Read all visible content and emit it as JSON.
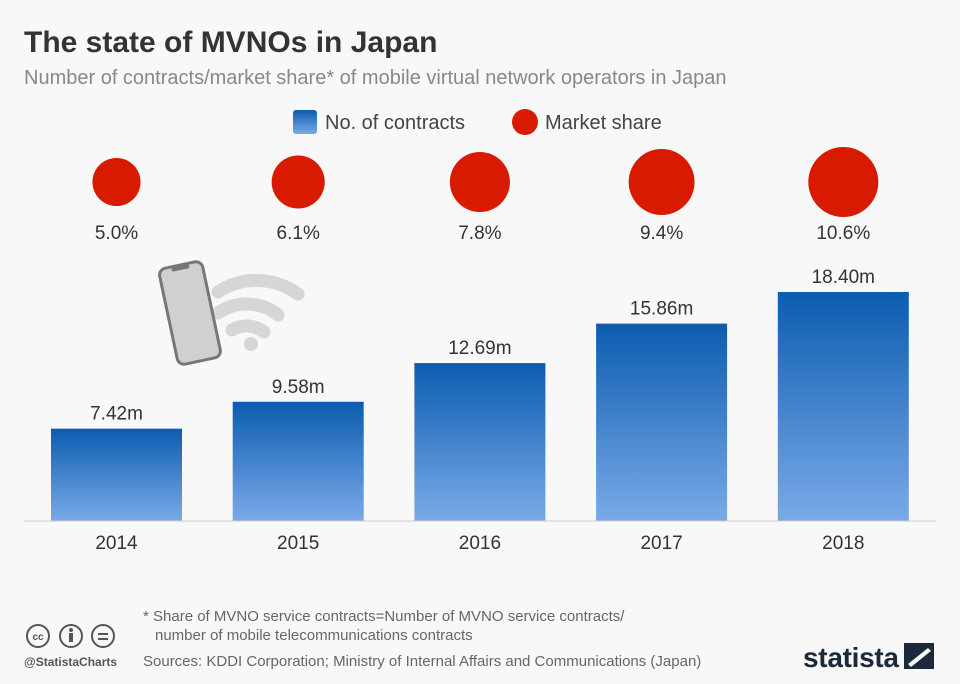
{
  "chart_data": {
    "type": "bar",
    "title": "The state of MVNOs in Japan",
    "subtitle": "Number of contracts/market share* of mobile virtual network operators in Japan",
    "categories": [
      "2014",
      "2015",
      "2016",
      "2017",
      "2018"
    ],
    "series": [
      {
        "name": "No. of contracts",
        "values": [
          7.42,
          9.58,
          12.69,
          15.86,
          18.4
        ],
        "labels": [
          "7.42m",
          "9.58m",
          "12.69m",
          "15.86m",
          "18.40m"
        ],
        "unit": "m"
      },
      {
        "name": "Market share",
        "values": [
          5.0,
          6.1,
          7.8,
          9.4,
          10.6
        ],
        "labels": [
          "5.0%",
          "6.1%",
          "7.8%",
          "9.4%",
          "10.6%"
        ],
        "unit": "%",
        "mark": "circle-area"
      }
    ],
    "ylim": [
      0,
      18.4
    ],
    "grid": false,
    "legend": "top-center",
    "colors": {
      "bar_top": "#0b5cb0",
      "bar_bottom": "#7aaae8",
      "circle": "#d81a00"
    }
  },
  "footer": {
    "note_line1": "* Share of MVNO service contracts=Number of MVNO service contracts/",
    "note_line2": "number of mobile telecommunications contracts",
    "sources": "Sources: KDDI Corporation; Ministry of Internal Affairs and Communications (Japan)",
    "handle": "@StatistaCharts",
    "logo": "statista"
  }
}
